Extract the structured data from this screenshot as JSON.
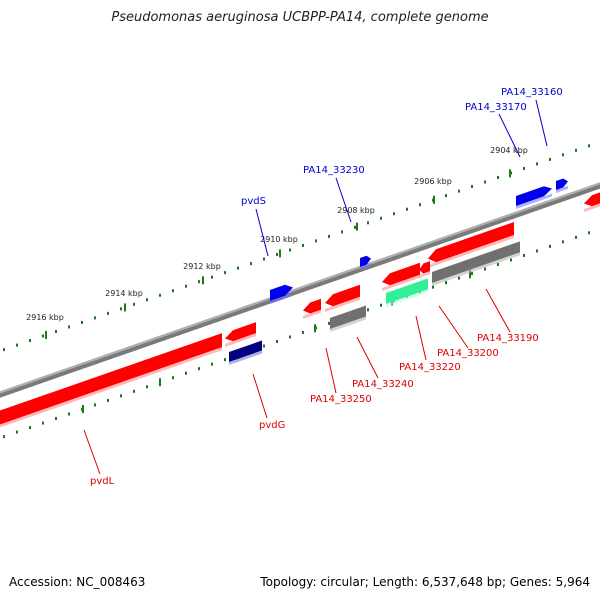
{
  "title": "Pseudomonas aeruginosa UCBPP-PA14, complete genome",
  "footer": {
    "accession": "Accession: NC_008463",
    "summary": "Topology: circular; Length: 6,537,648 bp; Genes: 5,964"
  },
  "colors": {
    "backbone": "#808080",
    "tick": "#1a7a1a",
    "forward_label": "#0000cc",
    "reverse_label": "#dd0000",
    "gene_red": "#ff0000",
    "gene_blue": "#0000ee",
    "gene_navy": "#000080",
    "gene_grey": "#707070",
    "gene_green": "#33ee99"
  },
  "scale_ticks": [
    {
      "label": "2904 kbp"
    },
    {
      "label": "2906 kbp"
    },
    {
      "label": "2908 kbp"
    },
    {
      "label": "2910 kbp"
    },
    {
      "label": "2912 kbp"
    },
    {
      "label": "2914 kbp"
    },
    {
      "label": "2916 kbp"
    }
  ],
  "gene_labels": {
    "forward": [
      "PA14_33160",
      "PA14_33170",
      "PA14_33230",
      "pvdS"
    ],
    "reverse": [
      "PA14_33190",
      "PA14_33200",
      "PA14_33220",
      "PA14_33240",
      "PA14_33250",
      "pvdG",
      "pvdL"
    ]
  }
}
